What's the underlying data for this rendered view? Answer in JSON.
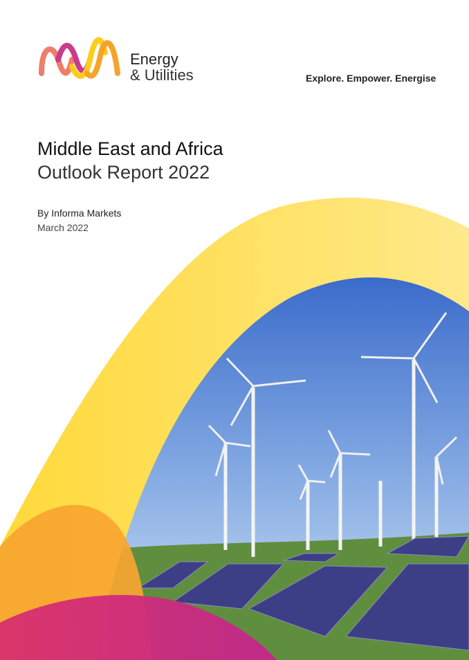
{
  "brand": {
    "line1": "Energy",
    "line2": "& Utilities",
    "logo": "wave-m-logo"
  },
  "tagline": "Explore. Empower. Energise",
  "title": {
    "line1": "Middle East and Africa",
    "line2": "Outlook Report 2022"
  },
  "author": "By Informa Markets",
  "date": "March 2022",
  "colors": {
    "yellow": "#FFE36A",
    "orange": "#F7A530",
    "pink": "#D6307A",
    "magenta": "#C4268C",
    "sky": "#3E6FCF"
  }
}
